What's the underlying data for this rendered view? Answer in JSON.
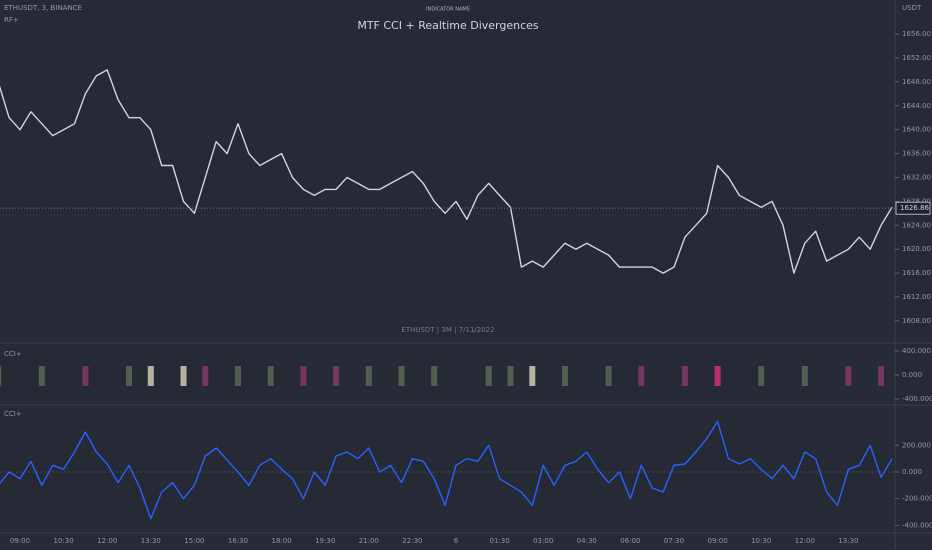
{
  "chart_data": [
    {
      "type": "line",
      "symbol": "ETHUSDT, 3, BINANCE",
      "indicator_short": "RF+",
      "indicator_caption": "INDICATOR NAME",
      "title": "MTF CCI + Realtime Divergences",
      "watermark": "ETHUSDT | 3M | 7/11/2022",
      "currency": "USDT",
      "color": "#d1d4dc",
      "last_price": 1626.86,
      "values": [
        1648,
        1642,
        1640,
        1643,
        1641,
        1639,
        1640,
        1641,
        1646,
        1649,
        1650,
        1645,
        1642,
        1642,
        1640,
        1634,
        1634,
        1628,
        1626,
        1632,
        1638,
        1636,
        1641,
        1636,
        1634,
        1635,
        1636,
        1632,
        1630,
        1629,
        1630,
        1630,
        1632,
        1631,
        1630,
        1630,
        1631,
        1632,
        1633,
        1631,
        1628,
        1626,
        1628,
        1625,
        1629,
        1631,
        1629,
        1627,
        1617,
        1618,
        1617,
        1619,
        1621,
        1620,
        1621,
        1620,
        1619,
        1617,
        1617,
        1617,
        1617,
        1616,
        1617,
        1622,
        1624,
        1626,
        1634,
        1632,
        1629,
        1628,
        1627,
        1628,
        1624,
        1616,
        1621,
        1623,
        1618,
        1619,
        1620,
        1622,
        1620,
        1624,
        1627
      ],
      "ylim": [
        1604.8,
        1661.7
      ],
      "yticks": [
        {
          "value": 1608,
          "label": "1608.00"
        },
        {
          "value": 1612,
          "label": "1612.00"
        },
        {
          "value": 1616,
          "label": "1616.00"
        },
        {
          "value": 1620,
          "label": "1620.00"
        },
        {
          "value": 1624,
          "label": "1624.00"
        },
        {
          "value": 1628,
          "label": "1628.00"
        },
        {
          "value": 1632,
          "label": "1632.00"
        },
        {
          "value": 1636,
          "label": "1636.00"
        },
        {
          "value": 1640,
          "label": "1640.00"
        },
        {
          "value": 1644,
          "label": "1644.00"
        },
        {
          "value": 1648,
          "label": "1648.00"
        },
        {
          "value": 1652,
          "label": "1652.00"
        },
        {
          "value": 1656,
          "label": "1656.00"
        }
      ]
    },
    {
      "type": "stripes",
      "name": "CCI+",
      "ylim": [
        -450,
        450
      ],
      "yticks": [
        {
          "value": 400,
          "label": "400.000"
        },
        {
          "value": 0,
          "label": "0.000"
        },
        {
          "value": -400,
          "label": "-400.000"
        }
      ],
      "stripes": [
        {
          "x": 0,
          "color": "#5d6b58"
        },
        {
          "x": 4,
          "color": "#5d6b58"
        },
        {
          "x": 8,
          "color": "#8a3a6a"
        },
        {
          "x": 12,
          "color": "#5d6b58"
        },
        {
          "x": 14,
          "color": "#d8d6b8"
        },
        {
          "x": 17,
          "color": "#d8d6b8"
        },
        {
          "x": 19,
          "color": "#8a3a6a"
        },
        {
          "x": 22,
          "color": "#5d6b58"
        },
        {
          "x": 25,
          "color": "#5d6b58"
        },
        {
          "x": 28,
          "color": "#8a3a6a"
        },
        {
          "x": 31,
          "color": "#8a3a6a"
        },
        {
          "x": 34,
          "color": "#5d6b58"
        },
        {
          "x": 37,
          "color": "#5d6b58"
        },
        {
          "x": 40,
          "color": "#5d6b58"
        },
        {
          "x": 45,
          "color": "#5d6b58"
        },
        {
          "x": 47,
          "color": "#5d6b58"
        },
        {
          "x": 49,
          "color": "#d8d6b8"
        },
        {
          "x": 52,
          "color": "#5d6b58"
        },
        {
          "x": 56,
          "color": "#5d6b58"
        },
        {
          "x": 59,
          "color": "#8a3a6a"
        },
        {
          "x": 63,
          "color": "#8a3a6a"
        },
        {
          "x": 66,
          "color": "#e0307a"
        },
        {
          "x": 70,
          "color": "#5d6b58"
        },
        {
          "x": 74,
          "color": "#5d6b58"
        },
        {
          "x": 78,
          "color": "#8a3a6a"
        },
        {
          "x": 81,
          "color": "#8a3a6a"
        }
      ]
    },
    {
      "type": "line",
      "name": "CCI+",
      "color": "#2962ff",
      "categories": [
        null,
        null,
        "09:00",
        null,
        null,
        null,
        "10:30",
        null,
        null,
        null,
        "12:00",
        null,
        null,
        null,
        "13:30",
        null,
        null,
        null,
        "15:00",
        null,
        null,
        null,
        "16:30",
        null,
        null,
        null,
        "18:00",
        null,
        null,
        null,
        "19:30",
        null,
        null,
        null,
        "21:00",
        null,
        null,
        null,
        "22:30",
        null,
        null,
        null,
        "6",
        null,
        null,
        null,
        "01:30",
        null,
        null,
        null,
        "03:00",
        null,
        null,
        null,
        "04:30",
        null,
        null,
        null,
        "06:00",
        null,
        null,
        null,
        "07:30",
        null,
        null,
        null,
        "09:00",
        null,
        null,
        null,
        "10:30",
        null,
        null,
        null,
        "12:00",
        null,
        null,
        null,
        "13:30",
        null,
        null,
        null,
        null
      ],
      "values": [
        -100,
        0,
        -50,
        80,
        -100,
        50,
        20,
        150,
        300,
        150,
        60,
        -80,
        50,
        -120,
        -350,
        -150,
        -80,
        -200,
        -100,
        120,
        180,
        90,
        0,
        -100,
        50,
        100,
        20,
        -50,
        -200,
        0,
        -100,
        120,
        150,
        100,
        180,
        0,
        50,
        -80,
        100,
        80,
        -50,
        -250,
        50,
        100,
        80,
        200,
        -50,
        -100,
        -150,
        -250,
        50,
        -100,
        50,
        80,
        150,
        20,
        -80,
        0,
        -200,
        50,
        -120,
        -150,
        50,
        60,
        150,
        250,
        380,
        100,
        60,
        100,
        20,
        -50,
        50,
        -50,
        150,
        100,
        -150,
        -250,
        20,
        50,
        200,
        -40,
        100
      ],
      "ylim": [
        -435,
        465
      ],
      "yticks": [
        {
          "value": 200,
          "label": "200.000"
        },
        {
          "value": 0,
          "label": "0.000"
        },
        {
          "value": -200,
          "label": "-200.000"
        },
        {
          "value": -400,
          "label": "-400.000"
        }
      ]
    }
  ]
}
